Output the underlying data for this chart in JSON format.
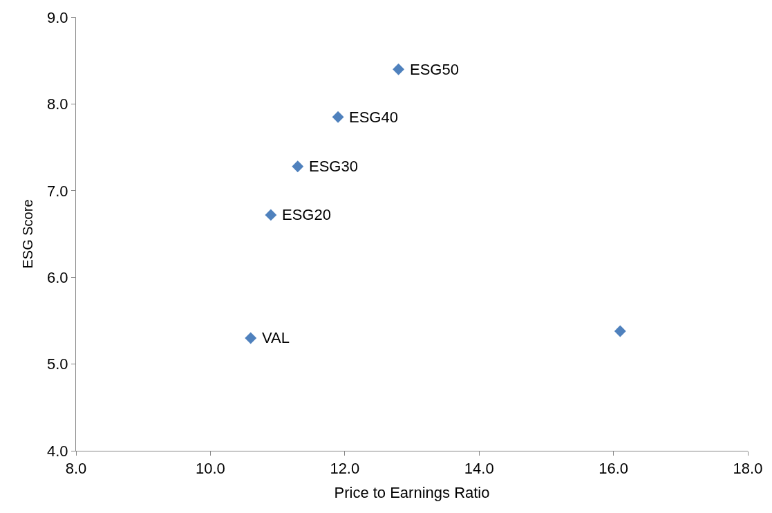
{
  "chart_data": {
    "type": "scatter",
    "xlabel": "Price to Earnings Ratio",
    "ylabel": "ESG Score",
    "x": [
      12.8,
      11.9,
      11.3,
      10.9,
      10.6,
      16.1
    ],
    "series": [
      {
        "color": "#4f81bd",
        "values": [
          8.4,
          7.85,
          7.28,
          6.72,
          5.3,
          5.38
        ]
      }
    ],
    "marker": "diamond",
    "xlim": [
      8,
      18
    ],
    "xticks": [
      {
        "value": 8,
        "label": "8.0"
      },
      {
        "value": 10,
        "label": "10.0"
      },
      {
        "value": 12,
        "label": "12.0"
      },
      {
        "value": 14,
        "label": "14.0"
      },
      {
        "value": 16,
        "label": "16.0"
      },
      {
        "value": 18,
        "label": "18.0"
      }
    ],
    "ylim": [
      4,
      9
    ],
    "yticks": [
      {
        "value": 4,
        "label": "4.0"
      },
      {
        "value": 5,
        "label": "5.0"
      },
      {
        "value": 6,
        "label": "6.0"
      },
      {
        "value": 7,
        "label": "7.0"
      },
      {
        "value": 8,
        "label": "8.0"
      },
      {
        "value": 9,
        "label": "9.0"
      }
    ],
    "annotations": [
      {
        "text": "ESG50",
        "x": 12.8,
        "y": 8.4
      },
      {
        "text": "ESG40",
        "x": 11.9,
        "y": 7.85
      },
      {
        "text": "ESG30",
        "x": 11.3,
        "y": 7.28
      },
      {
        "text": "ESG20",
        "x": 10.9,
        "y": 6.72
      },
      {
        "text": "VAL",
        "x": 10.6,
        "y": 5.3
      }
    ]
  }
}
